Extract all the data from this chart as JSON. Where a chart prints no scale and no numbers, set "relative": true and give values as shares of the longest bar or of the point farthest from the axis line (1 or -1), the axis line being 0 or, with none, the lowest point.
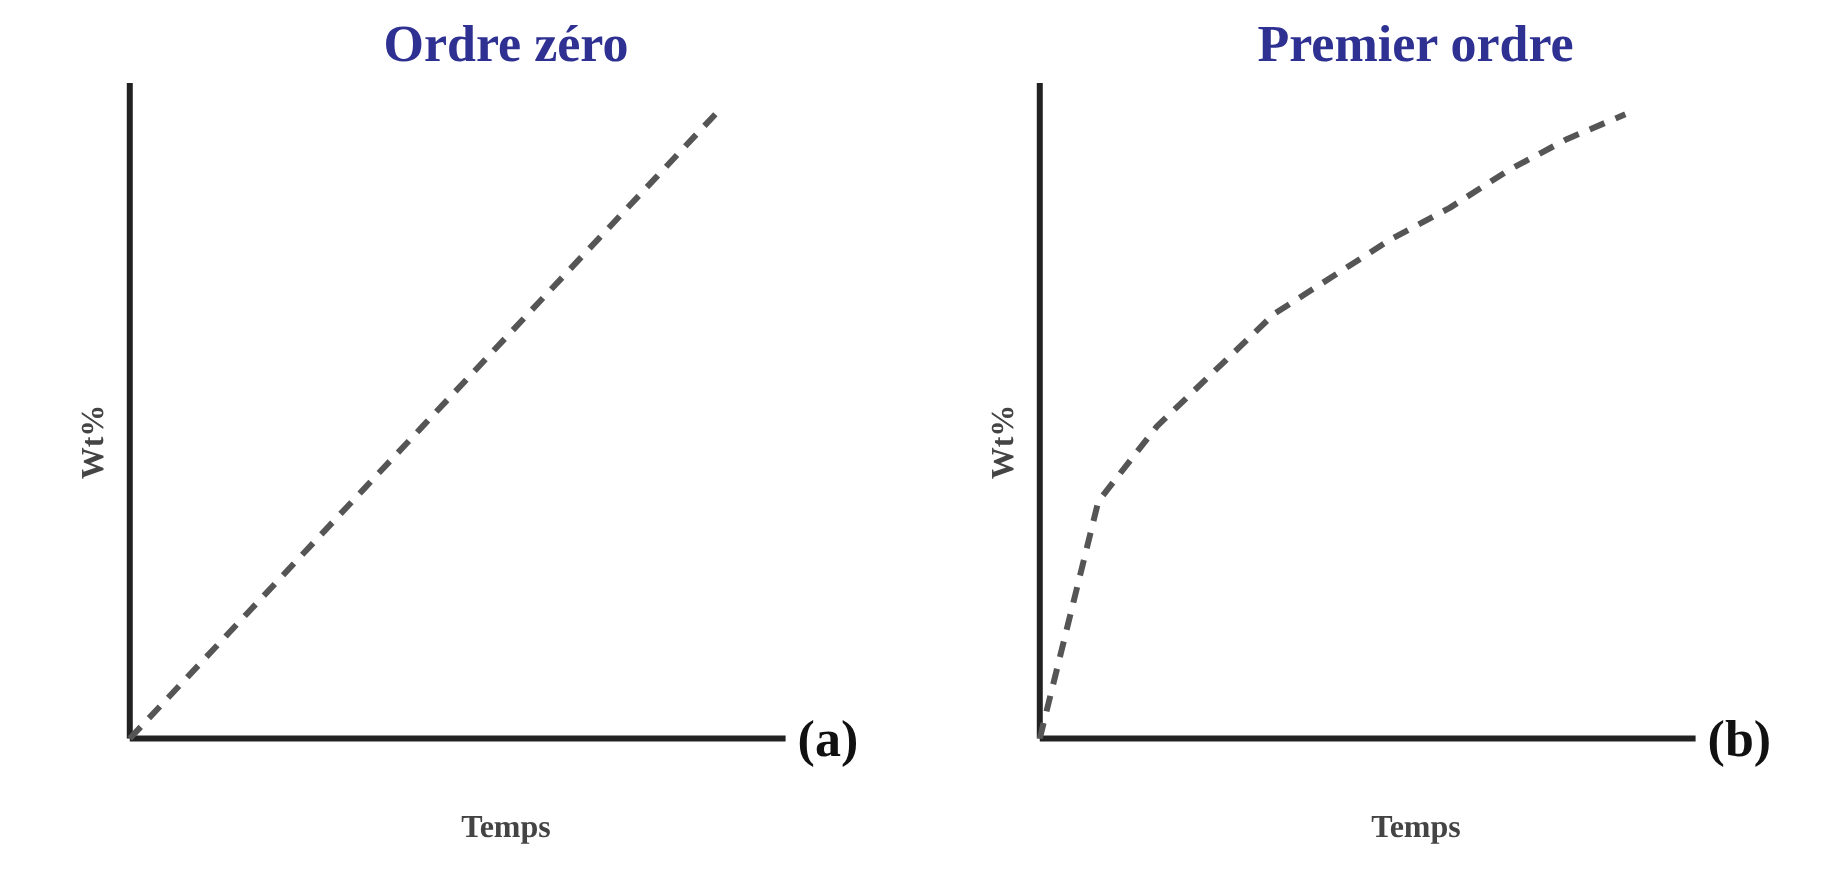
{
  "chart_data": [
    {
      "type": "line",
      "title": "Ordre zéro",
      "xlabel": "Temps",
      "ylabel": "Wt%",
      "relative": true,
      "line_style": "dashed",
      "marker": "none",
      "categories": [
        null,
        null,
        null,
        null,
        null,
        null,
        null,
        null,
        null,
        null,
        null
      ],
      "series": [
        {
          "color": "#555555",
          "values": [
            0,
            0.1,
            0.2,
            0.3,
            0.4,
            0.5,
            0.6,
            0.7,
            0.8,
            0.9,
            1
          ]
        }
      ],
      "annotations": [
        "(a)"
      ]
    },
    {
      "type": "line",
      "title": "Premier ordre",
      "xlabel": "Temps",
      "ylabel": "Wt%",
      "relative": true,
      "line_style": "dashed",
      "marker": "none",
      "categories": [
        null,
        null,
        null,
        null,
        null,
        null,
        null,
        null,
        null,
        null,
        null
      ],
      "series": [
        {
          "color": "#555555",
          "values": [
            0,
            0.38,
            0.5,
            0.59,
            0.68,
            0.74,
            0.8,
            0.85,
            0.91,
            0.96,
            1
          ]
        }
      ],
      "annotations": [
        "(b)"
      ]
    }
  ]
}
